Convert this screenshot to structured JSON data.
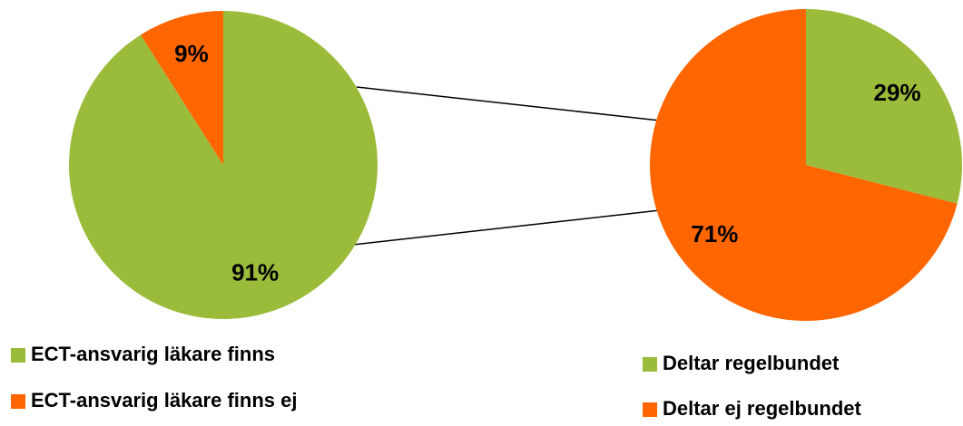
{
  "chart_data": [
    {
      "type": "pie",
      "categories": [
        "ECT-ansvarig läkare finns",
        "ECT-ansvarig läkare finns ej"
      ],
      "values": [
        91,
        9
      ],
      "value_labels": [
        "91%",
        "9%"
      ],
      "colors": [
        "#9bbb3b",
        "#ff6600"
      ]
    },
    {
      "type": "pie",
      "categories": [
        "Deltar regelbundet",
        "Deltar ej regelbundet"
      ],
      "values": [
        29,
        71
      ],
      "value_labels": [
        "29%",
        "71%"
      ],
      "colors": [
        "#9bbb3b",
        "#ff6600"
      ]
    }
  ]
}
